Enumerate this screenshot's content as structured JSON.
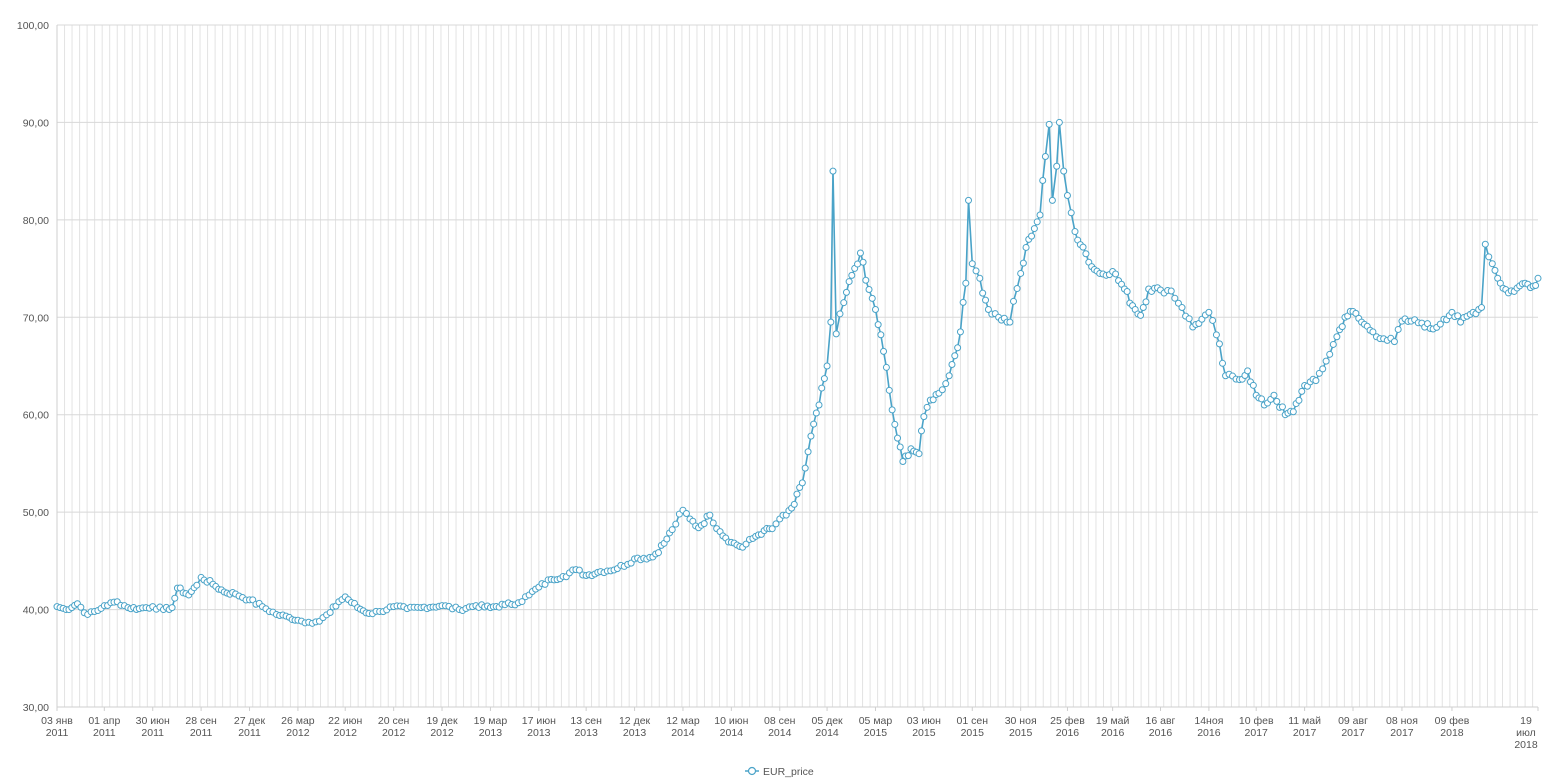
{
  "chart_data": {
    "type": "line",
    "title": "",
    "xlabel": "",
    "ylabel": "",
    "grid": true,
    "legend_position": "bottom-center",
    "series_color": "#4aa3c8",
    "ylim": [
      30,
      100
    ],
    "y_ticks": [
      "30,00",
      "40,00",
      "50,00",
      "60,00",
      "70,00",
      "80,00",
      "90,00",
      "100,00"
    ],
    "x_range": [
      "2011-01-03",
      "2018-07-19"
    ],
    "x_ticks": [
      {
        "date": "2011-01-03",
        "l1": "03 янв",
        "l2": "2011"
      },
      {
        "date": "2011-04-01",
        "l1": "01 апр",
        "l2": "2011"
      },
      {
        "date": "2011-06-30",
        "l1": "30 июн",
        "l2": "2011"
      },
      {
        "date": "2011-09-28",
        "l1": "28 сен",
        "l2": "2011"
      },
      {
        "date": "2011-12-27",
        "l1": "27 дек",
        "l2": "2011"
      },
      {
        "date": "2012-03-26",
        "l1": "26 мар",
        "l2": "2012"
      },
      {
        "date": "2012-06-22",
        "l1": "22 июн",
        "l2": "2012"
      },
      {
        "date": "2012-09-20",
        "l1": "20 сен",
        "l2": "2012"
      },
      {
        "date": "2012-12-19",
        "l1": "19 дек",
        "l2": "2012"
      },
      {
        "date": "2013-03-19",
        "l1": "19 мар",
        "l2": "2013"
      },
      {
        "date": "2013-06-17",
        "l1": "17 июн",
        "l2": "2013"
      },
      {
        "date": "2013-09-13",
        "l1": "13 сен",
        "l2": "2013"
      },
      {
        "date": "2013-12-12",
        "l1": "12 дек",
        "l2": "2013"
      },
      {
        "date": "2014-03-12",
        "l1": "12 мар",
        "l2": "2014"
      },
      {
        "date": "2014-06-10",
        "l1": "10 июн",
        "l2": "2014"
      },
      {
        "date": "2014-09-08",
        "l1": "08 сен",
        "l2": "2014"
      },
      {
        "date": "2014-12-05",
        "l1": "05 дек",
        "l2": "2014"
      },
      {
        "date": "2015-03-05",
        "l1": "05 мар",
        "l2": "2015"
      },
      {
        "date": "2015-06-03",
        "l1": "03 июн",
        "l2": "2015"
      },
      {
        "date": "2015-09-01",
        "l1": "01 сен",
        "l2": "2015"
      },
      {
        "date": "2015-11-30",
        "l1": "30 ноя",
        "l2": "2015"
      },
      {
        "date": "2016-02-25",
        "l1": "25 фев",
        "l2": "2016"
      },
      {
        "date": "2016-05-19",
        "l1": "19 май",
        "l2": "2016"
      },
      {
        "date": "2016-08-16",
        "l1": "16 авг",
        "l2": "2016"
      },
      {
        "date": "2016-11-14",
        "l1": "14ноя",
        "l2": "2016"
      },
      {
        "date": "2017-02-10",
        "l1": "10 фев",
        "l2": "2017"
      },
      {
        "date": "2017-05-11",
        "l1": "11 май",
        "l2": "2017"
      },
      {
        "date": "2017-08-09",
        "l1": "09 авг",
        "l2": "2017"
      },
      {
        "date": "2017-11-08",
        "l1": "08 ноя",
        "l2": "2017"
      },
      {
        "date": "2018-02-09",
        "l1": "09 фев",
        "l2": "2018"
      },
      {
        "date": "2018-07-19",
        "l1": "19",
        "l2": "июл",
        "l3": "2018"
      }
    ],
    "series": [
      {
        "name": "EUR_price",
        "points": [
          [
            "2011-01-03",
            40.3
          ],
          [
            "2011-01-20",
            40.0
          ],
          [
            "2011-02-10",
            40.6
          ],
          [
            "2011-03-01",
            39.5
          ],
          [
            "2011-03-20",
            39.9
          ],
          [
            "2011-04-01",
            40.4
          ],
          [
            "2011-04-25",
            40.8
          ],
          [
            "2011-05-15",
            40.2
          ],
          [
            "2011-06-05",
            40.1
          ],
          [
            "2011-06-30",
            40.3
          ],
          [
            "2011-07-20",
            40.0
          ],
          [
            "2011-08-05",
            40.2
          ],
          [
            "2011-08-15",
            42.2
          ],
          [
            "2011-09-05",
            41.5
          ],
          [
            "2011-09-20",
            42.5
          ],
          [
            "2011-09-28",
            43.3
          ],
          [
            "2011-10-20",
            42.6
          ],
          [
            "2011-11-10",
            41.8
          ],
          [
            "2011-12-01",
            41.6
          ],
          [
            "2011-12-27",
            41.0
          ],
          [
            "2012-01-20",
            40.3
          ],
          [
            "2012-02-15",
            39.5
          ],
          [
            "2012-03-10",
            39.2
          ],
          [
            "2012-03-26",
            38.9
          ],
          [
            "2012-04-15",
            38.7
          ],
          [
            "2012-05-05",
            38.8
          ],
          [
            "2012-05-25",
            39.7
          ],
          [
            "2012-06-10",
            40.8
          ],
          [
            "2012-06-22",
            41.3
          ],
          [
            "2012-07-15",
            40.2
          ],
          [
            "2012-08-05",
            39.6
          ],
          [
            "2012-08-25",
            39.8
          ],
          [
            "2012-09-20",
            40.3
          ],
          [
            "2012-10-15",
            40.1
          ],
          [
            "2012-11-10",
            40.2
          ],
          [
            "2012-12-19",
            40.4
          ],
          [
            "2013-01-20",
            40.0
          ],
          [
            "2013-02-20",
            40.4
          ],
          [
            "2013-03-19",
            40.2
          ],
          [
            "2013-04-15",
            40.5
          ],
          [
            "2013-05-10",
            40.7
          ],
          [
            "2013-05-30",
            41.5
          ],
          [
            "2013-06-17",
            42.3
          ],
          [
            "2013-07-10",
            43.1
          ],
          [
            "2013-08-01",
            43.4
          ],
          [
            "2013-08-25",
            44.1
          ],
          [
            "2013-09-13",
            43.5
          ],
          [
            "2013-10-10",
            43.9
          ],
          [
            "2013-11-10",
            44.2
          ],
          [
            "2013-12-12",
            45.2
          ],
          [
            "2014-01-15",
            45.4
          ],
          [
            "2014-02-05",
            46.8
          ],
          [
            "2014-02-20",
            48.2
          ],
          [
            "2014-03-12",
            50.2
          ],
          [
            "2014-03-25",
            49.3
          ],
          [
            "2014-04-10",
            48.4
          ],
          [
            "2014-05-01",
            49.7
          ],
          [
            "2014-05-20",
            48.0
          ],
          [
            "2014-06-10",
            46.9
          ],
          [
            "2014-07-01",
            46.4
          ],
          [
            "2014-07-20",
            47.3
          ],
          [
            "2014-08-10",
            48.1
          ],
          [
            "2014-08-25",
            48.3
          ],
          [
            "2014-09-08",
            49.3
          ],
          [
            "2014-09-20",
            49.7
          ],
          [
            "2014-10-05",
            50.8
          ],
          [
            "2014-10-20",
            53.0
          ],
          [
            "2014-11-05",
            57.8
          ],
          [
            "2014-11-20",
            61.0
          ],
          [
            "2014-12-05",
            65.0
          ],
          [
            "2014-12-12",
            69.5
          ],
          [
            "2014-12-16",
            85.0
          ],
          [
            "2014-12-22",
            68.3
          ],
          [
            "2015-01-05",
            71.5
          ],
          [
            "2015-01-20",
            74.3
          ],
          [
            "2015-02-05",
            76.6
          ],
          [
            "2015-02-15",
            73.8
          ],
          [
            "2015-03-05",
            70.8
          ],
          [
            "2015-03-20",
            66.5
          ],
          [
            "2015-04-05",
            60.5
          ],
          [
            "2015-04-15",
            57.6
          ],
          [
            "2015-04-25",
            55.2
          ],
          [
            "2015-05-10",
            56.5
          ],
          [
            "2015-05-25",
            56.0
          ],
          [
            "2015-06-03",
            59.8
          ],
          [
            "2015-06-15",
            61.5
          ],
          [
            "2015-07-01",
            62.2
          ],
          [
            "2015-07-20",
            64.0
          ],
          [
            "2015-08-10",
            68.5
          ],
          [
            "2015-08-20",
            73.5
          ],
          [
            "2015-08-25",
            82.0
          ],
          [
            "2015-09-01",
            75.5
          ],
          [
            "2015-09-15",
            74.0
          ],
          [
            "2015-10-01",
            70.8
          ],
          [
            "2015-10-20",
            70.0
          ],
          [
            "2015-11-10",
            69.5
          ],
          [
            "2015-11-30",
            74.5
          ],
          [
            "2015-12-15",
            78.0
          ],
          [
            "2016-01-05",
            80.5
          ],
          [
            "2016-01-15",
            86.5
          ],
          [
            "2016-01-22",
            89.8
          ],
          [
            "2016-01-28",
            82.0
          ],
          [
            "2016-02-05",
            85.5
          ],
          [
            "2016-02-10",
            90.0
          ],
          [
            "2016-02-18",
            85.0
          ],
          [
            "2016-02-25",
            82.5
          ],
          [
            "2016-03-10",
            78.8
          ],
          [
            "2016-03-25",
            77.2
          ],
          [
            "2016-04-10",
            75.2
          ],
          [
            "2016-04-25",
            74.5
          ],
          [
            "2016-05-19",
            74.7
          ],
          [
            "2016-06-10",
            72.9
          ],
          [
            "2016-06-25",
            71.2
          ],
          [
            "2016-07-10",
            70.2
          ],
          [
            "2016-07-25",
            72.9
          ],
          [
            "2016-08-16",
            72.8
          ],
          [
            "2016-09-05",
            72.7
          ],
          [
            "2016-09-25",
            71.0
          ],
          [
            "2016-10-15",
            69.0
          ],
          [
            "2016-11-01",
            69.8
          ],
          [
            "2016-11-14",
            70.5
          ],
          [
            "2016-11-28",
            68.2
          ],
          [
            "2016-12-15",
            64.0
          ],
          [
            "2017-01-10",
            63.6
          ],
          [
            "2017-01-25",
            64.5
          ],
          [
            "2017-02-10",
            62.0
          ],
          [
            "2017-02-25",
            61.0
          ],
          [
            "2017-03-15",
            62.0
          ],
          [
            "2017-04-05",
            60.0
          ],
          [
            "2017-04-20",
            60.3
          ],
          [
            "2017-05-11",
            63.0
          ],
          [
            "2017-06-01",
            63.5
          ],
          [
            "2017-06-20",
            65.5
          ],
          [
            "2017-07-10",
            68.0
          ],
          [
            "2017-07-25",
            70.0
          ],
          [
            "2017-08-09",
            70.6
          ],
          [
            "2017-08-25",
            69.5
          ],
          [
            "2017-09-15",
            68.5
          ],
          [
            "2017-10-05",
            67.8
          ],
          [
            "2017-10-25",
            67.5
          ],
          [
            "2017-11-08",
            69.6
          ],
          [
            "2017-11-25",
            69.6
          ],
          [
            "2017-12-15",
            69.4
          ],
          [
            "2018-01-05",
            68.8
          ],
          [
            "2018-01-25",
            69.8
          ],
          [
            "2018-02-09",
            70.5
          ],
          [
            "2018-02-25",
            69.5
          ],
          [
            "2018-03-15",
            70.3
          ],
          [
            "2018-04-05",
            71.0
          ],
          [
            "2018-04-12",
            77.5
          ],
          [
            "2018-04-25",
            75.5
          ],
          [
            "2018-05-10",
            73.5
          ],
          [
            "2018-05-25",
            72.5
          ],
          [
            "2018-06-10",
            73.0
          ],
          [
            "2018-06-25",
            73.5
          ],
          [
            "2018-07-10",
            73.2
          ],
          [
            "2018-07-19",
            74.0
          ]
        ]
      }
    ]
  }
}
